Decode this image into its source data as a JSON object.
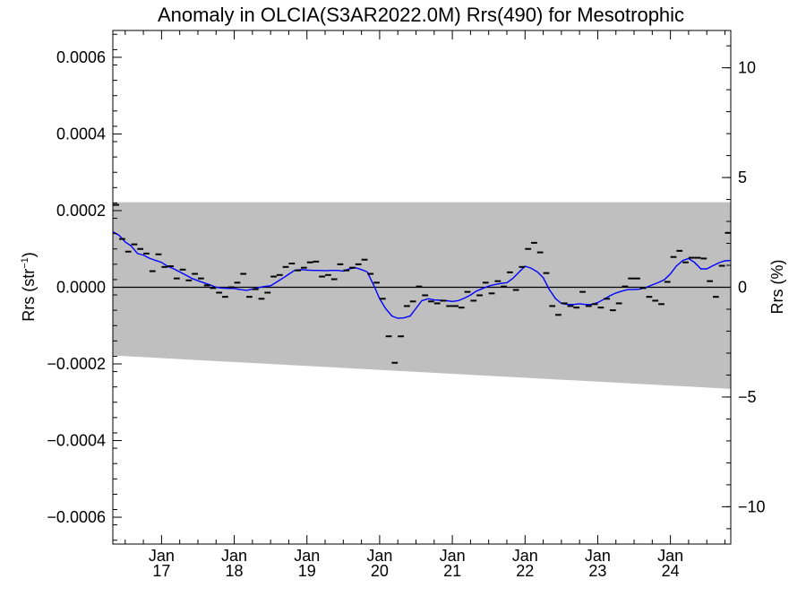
{
  "chart_data": {
    "type": "scatter",
    "title": "Anomaly in OLCIA(S3AR2022.0M) Rrs(490) for Mesotrophic",
    "ylabel_left": "Rrs (str",
    "ylabel_left_sup": "−1",
    "ylabel_left_close": ")",
    "ylabel_right": "Rrs (%)",
    "xlim": [
      2016.33,
      2024.83
    ],
    "ylim": [
      -0.00067,
      0.00067
    ],
    "ylim_right_percent": [
      -11.7,
      11.7
    ],
    "x_ticks": [
      {
        "x": 2017.0,
        "month": "Jan",
        "year": "17"
      },
      {
        "x": 2018.0,
        "month": "Jan",
        "year": "18"
      },
      {
        "x": 2019.0,
        "month": "Jan",
        "year": "19"
      },
      {
        "x": 2020.0,
        "month": "Jan",
        "year": "20"
      },
      {
        "x": 2021.0,
        "month": "Jan",
        "year": "21"
      },
      {
        "x": 2022.0,
        "month": "Jan",
        "year": "22"
      },
      {
        "x": 2023.0,
        "month": "Jan",
        "year": "23"
      },
      {
        "x": 2024.0,
        "month": "Jan",
        "year": "24"
      }
    ],
    "y_ticks_left": [
      {
        "value": 0.0006,
        "label": "0.0006"
      },
      {
        "value": 0.0004,
        "label": "0.0004"
      },
      {
        "value": 0.0002,
        "label": "0.0002"
      },
      {
        "value": 0.0,
        "label": "0.0000"
      },
      {
        "value": -0.0002,
        "label": "−0.0002"
      },
      {
        "value": -0.0004,
        "label": "−0.0004"
      },
      {
        "value": -0.0006,
        "label": "−0.0006"
      }
    ],
    "y_ticks_right": [
      {
        "value": 10,
        "label": "10"
      },
      {
        "value": 5,
        "label": "5"
      },
      {
        "value": 0,
        "label": "0"
      },
      {
        "value": -5,
        "label": "−5"
      },
      {
        "value": -10,
        "label": "−10"
      }
    ],
    "band": {
      "upper": [
        0.000222,
        0.000222
      ],
      "lower": [
        -0.000178,
        -0.000265
      ]
    },
    "colors": {
      "band": "#bfbfbf",
      "smooth": "#0000ff",
      "points": "#000000",
      "zero": "#000000"
    },
    "monthly_anomalies": [
      {
        "x": 2016.375,
        "y": 0.000215
      },
      {
        "x": 2016.458,
        "y": 0.000126
      },
      {
        "x": 2016.542,
        "y": 9.3e-05
      },
      {
        "x": 2016.625,
        "y": 0.000112
      },
      {
        "x": 2016.708,
        "y": 0.0001
      },
      {
        "x": 2016.792,
        "y": 8.8e-05
      },
      {
        "x": 2016.875,
        "y": 4.2e-05
      },
      {
        "x": 2016.958,
        "y": 8.6e-05
      },
      {
        "x": 2017.042,
        "y": 5.3e-05
      },
      {
        "x": 2017.125,
        "y": 5.5e-05
      },
      {
        "x": 2017.208,
        "y": 2.3e-05
      },
      {
        "x": 2017.292,
        "y": 4.6e-05
      },
      {
        "x": 2017.375,
        "y": 1.8e-05
      },
      {
        "x": 2017.458,
        "y": 3.5e-05
      },
      {
        "x": 2017.542,
        "y": 2.3e-05
      },
      {
        "x": 2017.625,
        "y": 5e-06
      },
      {
        "x": 2017.708,
        "y": -2e-06
      },
      {
        "x": 2017.792,
        "y": -1.4e-05
      },
      {
        "x": 2017.875,
        "y": -2.5e-05
      },
      {
        "x": 2017.958,
        "y": 0.0
      },
      {
        "x": 2018.042,
        "y": 1.2e-05
      },
      {
        "x": 2018.125,
        "y": 3.5e-05
      },
      {
        "x": 2018.208,
        "y": -2.5e-05
      },
      {
        "x": 2018.292,
        "y": -5e-06
      },
      {
        "x": 2018.375,
        "y": -3e-05
      },
      {
        "x": 2018.458,
        "y": -1.4e-05
      },
      {
        "x": 2018.542,
        "y": 2.8e-05
      },
      {
        "x": 2018.625,
        "y": 3.2e-05
      },
      {
        "x": 2018.708,
        "y": 5.3e-05
      },
      {
        "x": 2018.792,
        "y": 6.2e-05
      },
      {
        "x": 2018.875,
        "y": 4.4e-05
      },
      {
        "x": 2018.958,
        "y": 5.1e-05
      },
      {
        "x": 2019.042,
        "y": 6.5e-05
      },
      {
        "x": 2019.125,
        "y": 6.7e-05
      },
      {
        "x": 2019.208,
        "y": 2.8e-05
      },
      {
        "x": 2019.292,
        "y": 3.2e-05
      },
      {
        "x": 2019.375,
        "y": 2.1e-05
      },
      {
        "x": 2019.458,
        "y": 6e-05
      },
      {
        "x": 2019.542,
        "y": 4.4e-05
      },
      {
        "x": 2019.625,
        "y": 5.1e-05
      },
      {
        "x": 2019.708,
        "y": 6e-05
      },
      {
        "x": 2019.792,
        "y": 7.2e-05
      },
      {
        "x": 2019.875,
        "y": 3.5e-05
      },
      {
        "x": 2019.958,
        "y": 1.2e-05
      },
      {
        "x": 2020.042,
        "y": -3e-05
      },
      {
        "x": 2020.125,
        "y": -0.000128
      },
      {
        "x": 2020.208,
        "y": -0.000197
      },
      {
        "x": 2020.292,
        "y": -0.000128
      },
      {
        "x": 2020.375,
        "y": -4.9e-05
      },
      {
        "x": 2020.458,
        "y": -3.7e-05
      },
      {
        "x": 2020.542,
        "y": 2e-06
      },
      {
        "x": 2020.625,
        "y": -2.1e-05
      },
      {
        "x": 2020.708,
        "y": -3.7e-05
      },
      {
        "x": 2020.792,
        "y": -4.2e-05
      },
      {
        "x": 2020.875,
        "y": -3.5e-05
      },
      {
        "x": 2020.958,
        "y": -4.9e-05
      },
      {
        "x": 2021.042,
        "y": -4.9e-05
      },
      {
        "x": 2021.125,
        "y": -5.3e-05
      },
      {
        "x": 2021.208,
        "y": -1.2e-05
      },
      {
        "x": 2021.292,
        "y": -3.5e-05
      },
      {
        "x": 2021.375,
        "y": -2.1e-05
      },
      {
        "x": 2021.458,
        "y": 1.2e-05
      },
      {
        "x": 2021.542,
        "y": -1.6e-05
      },
      {
        "x": 2021.625,
        "y": 1.6e-05
      },
      {
        "x": 2021.708,
        "y": 2e-06
      },
      {
        "x": 2021.792,
        "y": 3.9e-05
      },
      {
        "x": 2021.875,
        "y": -7e-06
      },
      {
        "x": 2021.958,
        "y": 5.3e-05
      },
      {
        "x": 2022.042,
        "y": 0.0001
      },
      {
        "x": 2022.125,
        "y": 0.000116
      },
      {
        "x": 2022.208,
        "y": 9.1e-05
      },
      {
        "x": 2022.292,
        "y": 3.7e-05
      },
      {
        "x": 2022.375,
        "y": -4.9e-05
      },
      {
        "x": 2022.458,
        "y": -7.2e-05
      },
      {
        "x": 2022.542,
        "y": -4.2e-05
      },
      {
        "x": 2022.625,
        "y": -4.9e-05
      },
      {
        "x": 2022.708,
        "y": -5.3e-05
      },
      {
        "x": 2022.792,
        "y": -1.2e-05
      },
      {
        "x": 2022.875,
        "y": -4.9e-05
      },
      {
        "x": 2022.958,
        "y": -4.4e-05
      },
      {
        "x": 2023.042,
        "y": -5.3e-05
      },
      {
        "x": 2023.125,
        "y": -3e-05
      },
      {
        "x": 2023.208,
        "y": -6e-05
      },
      {
        "x": 2023.292,
        "y": -4.2e-05
      },
      {
        "x": 2023.375,
        "y": 2e-06
      },
      {
        "x": 2023.458,
        "y": 2.3e-05
      },
      {
        "x": 2023.542,
        "y": 2.3e-05
      },
      {
        "x": 2023.625,
        "y": -2e-06
      },
      {
        "x": 2023.708,
        "y": -2.5e-05
      },
      {
        "x": 2023.792,
        "y": -3.5e-05
      },
      {
        "x": 2023.875,
        "y": -4.4e-05
      },
      {
        "x": 2023.958,
        "y": 1.4e-05
      },
      {
        "x": 2024.042,
        "y": 7.9e-05
      },
      {
        "x": 2024.125,
        "y": 9.5e-05
      },
      {
        "x": 2024.208,
        "y": 6.5e-05
      },
      {
        "x": 2024.292,
        "y": 7.7e-05
      },
      {
        "x": 2024.375,
        "y": 7.7e-05
      },
      {
        "x": 2024.458,
        "y": 7.5e-05
      },
      {
        "x": 2024.542,
        "y": 1.6e-05
      },
      {
        "x": 2024.625,
        "y": -2.5e-05
      },
      {
        "x": 2024.708,
        "y": 5.6e-05
      },
      {
        "x": 2024.792,
        "y": 0.000142
      }
    ],
    "smoothed_anomaly": [
      {
        "x": 2016.33,
        "y": 0.000145
      },
      {
        "x": 2016.42,
        "y": 0.000135
      },
      {
        "x": 2016.5,
        "y": 0.000118
      },
      {
        "x": 2016.58,
        "y": 0.000108
      },
      {
        "x": 2016.67,
        "y": 8.8e-05
      },
      {
        "x": 2016.75,
        "y": 8.4e-05
      },
      {
        "x": 2016.83,
        "y": 7.6e-05
      },
      {
        "x": 2016.92,
        "y": 7e-05
      },
      {
        "x": 2017.0,
        "y": 6.5e-05
      },
      {
        "x": 2017.08,
        "y": 5.5e-05
      },
      {
        "x": 2017.17,
        "y": 4.8e-05
      },
      {
        "x": 2017.25,
        "y": 4e-05
      },
      {
        "x": 2017.33,
        "y": 3.2e-05
      },
      {
        "x": 2017.42,
        "y": 2.3e-05
      },
      {
        "x": 2017.5,
        "y": 1.7e-05
      },
      {
        "x": 2017.58,
        "y": 1.2e-05
      },
      {
        "x": 2017.67,
        "y": 6e-06
      },
      {
        "x": 2017.75,
        "y": 0.0
      },
      {
        "x": 2017.83,
        "y": -2e-06
      },
      {
        "x": 2017.92,
        "y": -3e-06
      },
      {
        "x": 2018.0,
        "y": -3e-06
      },
      {
        "x": 2018.08,
        "y": -6e-06
      },
      {
        "x": 2018.17,
        "y": -8e-06
      },
      {
        "x": 2018.25,
        "y": -5e-06
      },
      {
        "x": 2018.33,
        "y": -1e-06
      },
      {
        "x": 2018.42,
        "y": 2e-06
      },
      {
        "x": 2018.5,
        "y": 4e-06
      },
      {
        "x": 2018.58,
        "y": 1.3e-05
      },
      {
        "x": 2018.67,
        "y": 2.4e-05
      },
      {
        "x": 2018.75,
        "y": 3.4e-05
      },
      {
        "x": 2018.83,
        "y": 4.4e-05
      },
      {
        "x": 2018.92,
        "y": 4.6e-05
      },
      {
        "x": 2019.0,
        "y": 4.5e-05
      },
      {
        "x": 2019.08,
        "y": 4.4e-05
      },
      {
        "x": 2019.17,
        "y": 4.4e-05
      },
      {
        "x": 2019.25,
        "y": 4.3e-05
      },
      {
        "x": 2019.33,
        "y": 4.4e-05
      },
      {
        "x": 2019.42,
        "y": 4.4e-05
      },
      {
        "x": 2019.5,
        "y": 4.2e-05
      },
      {
        "x": 2019.58,
        "y": 4.8e-05
      },
      {
        "x": 2019.67,
        "y": 5.1e-05
      },
      {
        "x": 2019.75,
        "y": 4.6e-05
      },
      {
        "x": 2019.83,
        "y": 4e-05
      },
      {
        "x": 2019.92,
        "y": 5e-06
      },
      {
        "x": 2020.0,
        "y": -3e-05
      },
      {
        "x": 2020.08,
        "y": -5.5e-05
      },
      {
        "x": 2020.17,
        "y": -7.5e-05
      },
      {
        "x": 2020.25,
        "y": -8.1e-05
      },
      {
        "x": 2020.33,
        "y": -8e-05
      },
      {
        "x": 2020.42,
        "y": -7.5e-05
      },
      {
        "x": 2020.5,
        "y": -5.5e-05
      },
      {
        "x": 2020.58,
        "y": -3.5e-05
      },
      {
        "x": 2020.67,
        "y": -3e-05
      },
      {
        "x": 2020.75,
        "y": -3.3e-05
      },
      {
        "x": 2020.83,
        "y": -3.4e-05
      },
      {
        "x": 2020.92,
        "y": -3.5e-05
      },
      {
        "x": 2021.0,
        "y": -3.7e-05
      },
      {
        "x": 2021.08,
        "y": -3.5e-05
      },
      {
        "x": 2021.17,
        "y": -2.8e-05
      },
      {
        "x": 2021.25,
        "y": -2e-05
      },
      {
        "x": 2021.33,
        "y": -1e-05
      },
      {
        "x": 2021.42,
        "y": -3e-06
      },
      {
        "x": 2021.5,
        "y": 3e-06
      },
      {
        "x": 2021.58,
        "y": 7e-06
      },
      {
        "x": 2021.67,
        "y": 1e-05
      },
      {
        "x": 2021.75,
        "y": 1.2e-05
      },
      {
        "x": 2021.83,
        "y": 2.3e-05
      },
      {
        "x": 2021.92,
        "y": 4e-05
      },
      {
        "x": 2022.0,
        "y": 5.5e-05
      },
      {
        "x": 2022.08,
        "y": 5e-05
      },
      {
        "x": 2022.17,
        "y": 4e-05
      },
      {
        "x": 2022.25,
        "y": 2.5e-05
      },
      {
        "x": 2022.33,
        "y": -5e-06
      },
      {
        "x": 2022.42,
        "y": -3e-05
      },
      {
        "x": 2022.5,
        "y": -4.2e-05
      },
      {
        "x": 2022.58,
        "y": -4.5e-05
      },
      {
        "x": 2022.67,
        "y": -4.5e-05
      },
      {
        "x": 2022.75,
        "y": -4.3e-05
      },
      {
        "x": 2022.83,
        "y": -4.5e-05
      },
      {
        "x": 2022.92,
        "y": -4.5e-05
      },
      {
        "x": 2023.0,
        "y": -4e-05
      },
      {
        "x": 2023.08,
        "y": -3.2e-05
      },
      {
        "x": 2023.17,
        "y": -2.2e-05
      },
      {
        "x": 2023.25,
        "y": -1.5e-05
      },
      {
        "x": 2023.33,
        "y": -1e-05
      },
      {
        "x": 2023.42,
        "y": -6e-06
      },
      {
        "x": 2023.5,
        "y": -6e-06
      },
      {
        "x": 2023.58,
        "y": -5e-06
      },
      {
        "x": 2023.67,
        "y": 0.0
      },
      {
        "x": 2023.75,
        "y": 6e-06
      },
      {
        "x": 2023.83,
        "y": 1.2e-05
      },
      {
        "x": 2023.92,
        "y": 2e-05
      },
      {
        "x": 2024.0,
        "y": 3.5e-05
      },
      {
        "x": 2024.08,
        "y": 5.5e-05
      },
      {
        "x": 2024.17,
        "y": 7e-05
      },
      {
        "x": 2024.25,
        "y": 7.5e-05
      },
      {
        "x": 2024.33,
        "y": 6.5e-05
      },
      {
        "x": 2024.42,
        "y": 4.8e-05
      },
      {
        "x": 2024.5,
        "y": 4.8e-05
      },
      {
        "x": 2024.58,
        "y": 5.6e-05
      },
      {
        "x": 2024.67,
        "y": 6.4e-05
      },
      {
        "x": 2024.75,
        "y": 6.9e-05
      },
      {
        "x": 2024.83,
        "y": 7e-05
      }
    ]
  }
}
